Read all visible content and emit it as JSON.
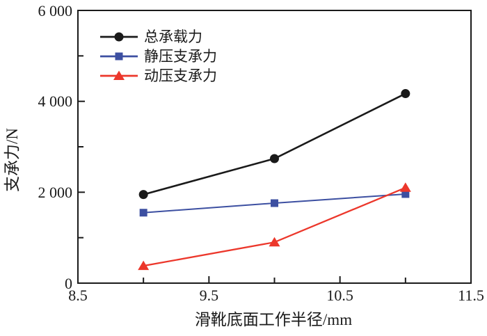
{
  "figure": {
    "background": "#ffffff",
    "text_color": "#1a1a1a",
    "frame_color": "#1a1a1a"
  },
  "chart_data": {
    "type": "line",
    "title": "",
    "xlabel": "滑靴底面工作半径/mm",
    "ylabel": "支承力/N",
    "x": [
      9.0,
      10.0,
      11.0
    ],
    "series": [
      {
        "id": "total-load",
        "name": "总承载力",
        "color": "#1a1a1a",
        "marker": "circle",
        "line_width": 2.6,
        "values": [
          1950,
          2740,
          4170
        ]
      },
      {
        "id": "static-support",
        "name": "静压支承力",
        "color": "#3c4fa1",
        "marker": "square",
        "line_width": 2.0,
        "values": [
          1550,
          1760,
          1960
        ]
      },
      {
        "id": "dynamic-support",
        "name": "动压支承力",
        "color": "#ec372b",
        "marker": "triangle",
        "line_width": 2.3,
        "values": [
          380,
          900,
          2100
        ]
      }
    ],
    "xlim": [
      8.5,
      11.5
    ],
    "ylim": [
      0,
      6000
    ],
    "x_major_ticks": [
      8.5,
      9.5,
      10.5,
      11.5
    ],
    "x_major_tick_labels": [
      "8.5",
      "9.5",
      "10.5",
      "11.5"
    ],
    "x_minor_ticks": [
      9.0,
      10.0,
      11.0
    ],
    "y_major_ticks": [
      0,
      2000,
      4000,
      6000
    ],
    "y_major_tick_labels": [
      "0",
      "2 000",
      "4 000",
      "6 000"
    ],
    "y_minor_ticks": [
      1000,
      3000,
      5000
    ],
    "grid": false,
    "legend_position": "upper-left-inside"
  }
}
